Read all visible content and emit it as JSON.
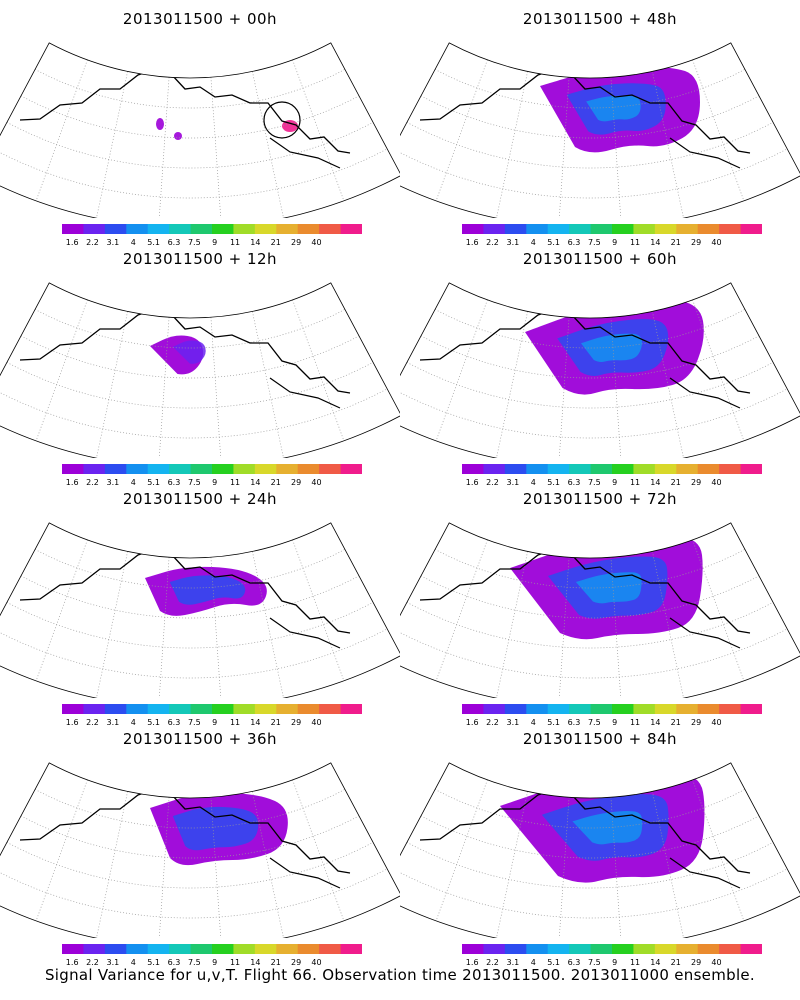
{
  "colorbar": {
    "levels": [
      "1.6",
      "2.2",
      "3.1",
      "4",
      "5.1",
      "6.3",
      "7.5",
      "9",
      "11",
      "14",
      "21",
      "29",
      "40"
    ],
    "colors": [
      "#9c00d8",
      "#6a23f0",
      "#2c4cf0",
      "#1490f0",
      "#14b4f0",
      "#14c8b8",
      "#1ec86e",
      "#26d020",
      "#a0dc28",
      "#d8d82a",
      "#e6b030",
      "#ea8b2e",
      "#f05a46",
      "#f01c8c"
    ]
  },
  "panels": [
    {
      "id": "p00",
      "title": "2013011500 + 00h",
      "col": 0,
      "row": 0,
      "fill_level": 0
    },
    {
      "id": "p48",
      "title": "2013011500 + 48h",
      "col": 1,
      "row": 0,
      "fill_level": 4
    },
    {
      "id": "p12",
      "title": "2013011500 + 12h",
      "col": 0,
      "row": 1,
      "fill_level": 1
    },
    {
      "id": "p60",
      "title": "2013011500 + 60h",
      "col": 1,
      "row": 1,
      "fill_level": 5
    },
    {
      "id": "p24",
      "title": "2013011500 + 24h",
      "col": 0,
      "row": 2,
      "fill_level": 2
    },
    {
      "id": "p72",
      "title": "2013011500 + 72h",
      "col": 1,
      "row": 2,
      "fill_level": 6
    },
    {
      "id": "p36",
      "title": "2013011500 + 36h",
      "col": 0,
      "row": 3,
      "fill_level": 3
    },
    {
      "id": "p84",
      "title": "2013011500 + 84h",
      "col": 1,
      "row": 3,
      "fill_level": 7
    }
  ],
  "footer": "Signal Variance for u,v,T. Flight 66. Observation time 2013011500. 2013011000 ensemble."
}
